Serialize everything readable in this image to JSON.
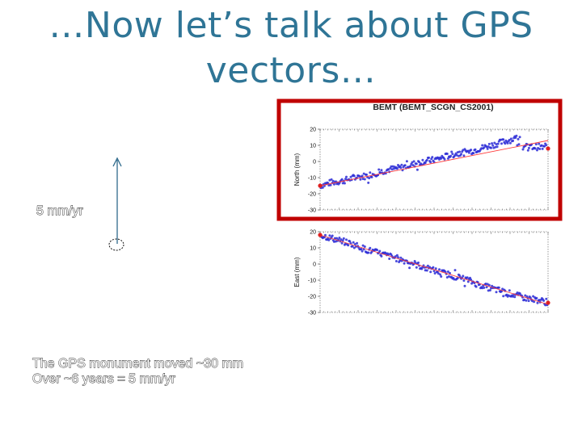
{
  "slide": {
    "title": "…Now let’s talk about GPS vectors…",
    "vector_label": "5 mm/yr",
    "caption_lines": [
      "The GPS monument moved ~30 mm",
      "Over ~6 years = 5 mm/yr"
    ]
  },
  "colors": {
    "title": "#2f7596",
    "highlight_box": "#c00000",
    "data_points": "#2b2bd6",
    "fit_line": "#ff3b3b",
    "end_points": "#e02020",
    "vector_arrow": "#2f6a8c"
  },
  "chart_data": [
    {
      "type": "scatter",
      "title": "BEMT (BEMT_SCGN_CS2001)",
      "ylabel": "North (mm)",
      "xlabel": "",
      "ylim": [
        -30,
        20
      ],
      "yticks": [
        20,
        10,
        0,
        -10,
        -20,
        -30
      ],
      "grid": false,
      "highlighted": true,
      "series": [
        {
          "values_description_free": true,
          "points": [
            [
              0.0,
              -15
            ],
            [
              0.05,
              -13
            ],
            [
              0.1,
              -12
            ],
            [
              0.15,
              -10
            ],
            [
              0.2,
              -9
            ],
            [
              0.25,
              -7
            ],
            [
              0.3,
              -5
            ],
            [
              0.35,
              -4
            ],
            [
              0.4,
              -2
            ],
            [
              0.45,
              0
            ],
            [
              0.5,
              1
            ],
            [
              0.55,
              3
            ],
            [
              0.6,
              5
            ],
            [
              0.65,
              6
            ],
            [
              0.7,
              8
            ],
            [
              0.75,
              10
            ],
            [
              0.8,
              12
            ],
            [
              0.85,
              14
            ],
            [
              0.88,
              15
            ],
            [
              0.89,
              9
            ],
            [
              0.92,
              9
            ],
            [
              0.96,
              9
            ],
            [
              1.0,
              8
            ]
          ]
        }
      ],
      "trend": [
        [
          0.0,
          -15
        ],
        [
          1.0,
          13
        ]
      ]
    },
    {
      "type": "scatter",
      "title": "",
      "ylabel": "East (mm)",
      "xlabel": "",
      "ylim": [
        -30,
        20
      ],
      "yticks": [
        20,
        10,
        0,
        -10,
        -20,
        -30
      ],
      "grid": false,
      "highlighted": false,
      "series": [
        {
          "points": [
            [
              0.0,
              18
            ],
            [
              0.05,
              16
            ],
            [
              0.1,
              14
            ],
            [
              0.15,
              12
            ],
            [
              0.2,
              9
            ],
            [
              0.25,
              7
            ],
            [
              0.3,
              5
            ],
            [
              0.35,
              3
            ],
            [
              0.4,
              1
            ],
            [
              0.45,
              -2
            ],
            [
              0.5,
              -4
            ],
            [
              0.55,
              -6
            ],
            [
              0.6,
              -8
            ],
            [
              0.65,
              -10
            ],
            [
              0.7,
              -13
            ],
            [
              0.75,
              -15
            ],
            [
              0.8,
              -17
            ],
            [
              0.85,
              -19
            ],
            [
              0.9,
              -21
            ],
            [
              0.95,
              -22
            ],
            [
              1.0,
              -24
            ]
          ]
        }
      ],
      "trend": [
        [
          0.0,
          18
        ],
        [
          1.0,
          -25
        ]
      ]
    }
  ]
}
